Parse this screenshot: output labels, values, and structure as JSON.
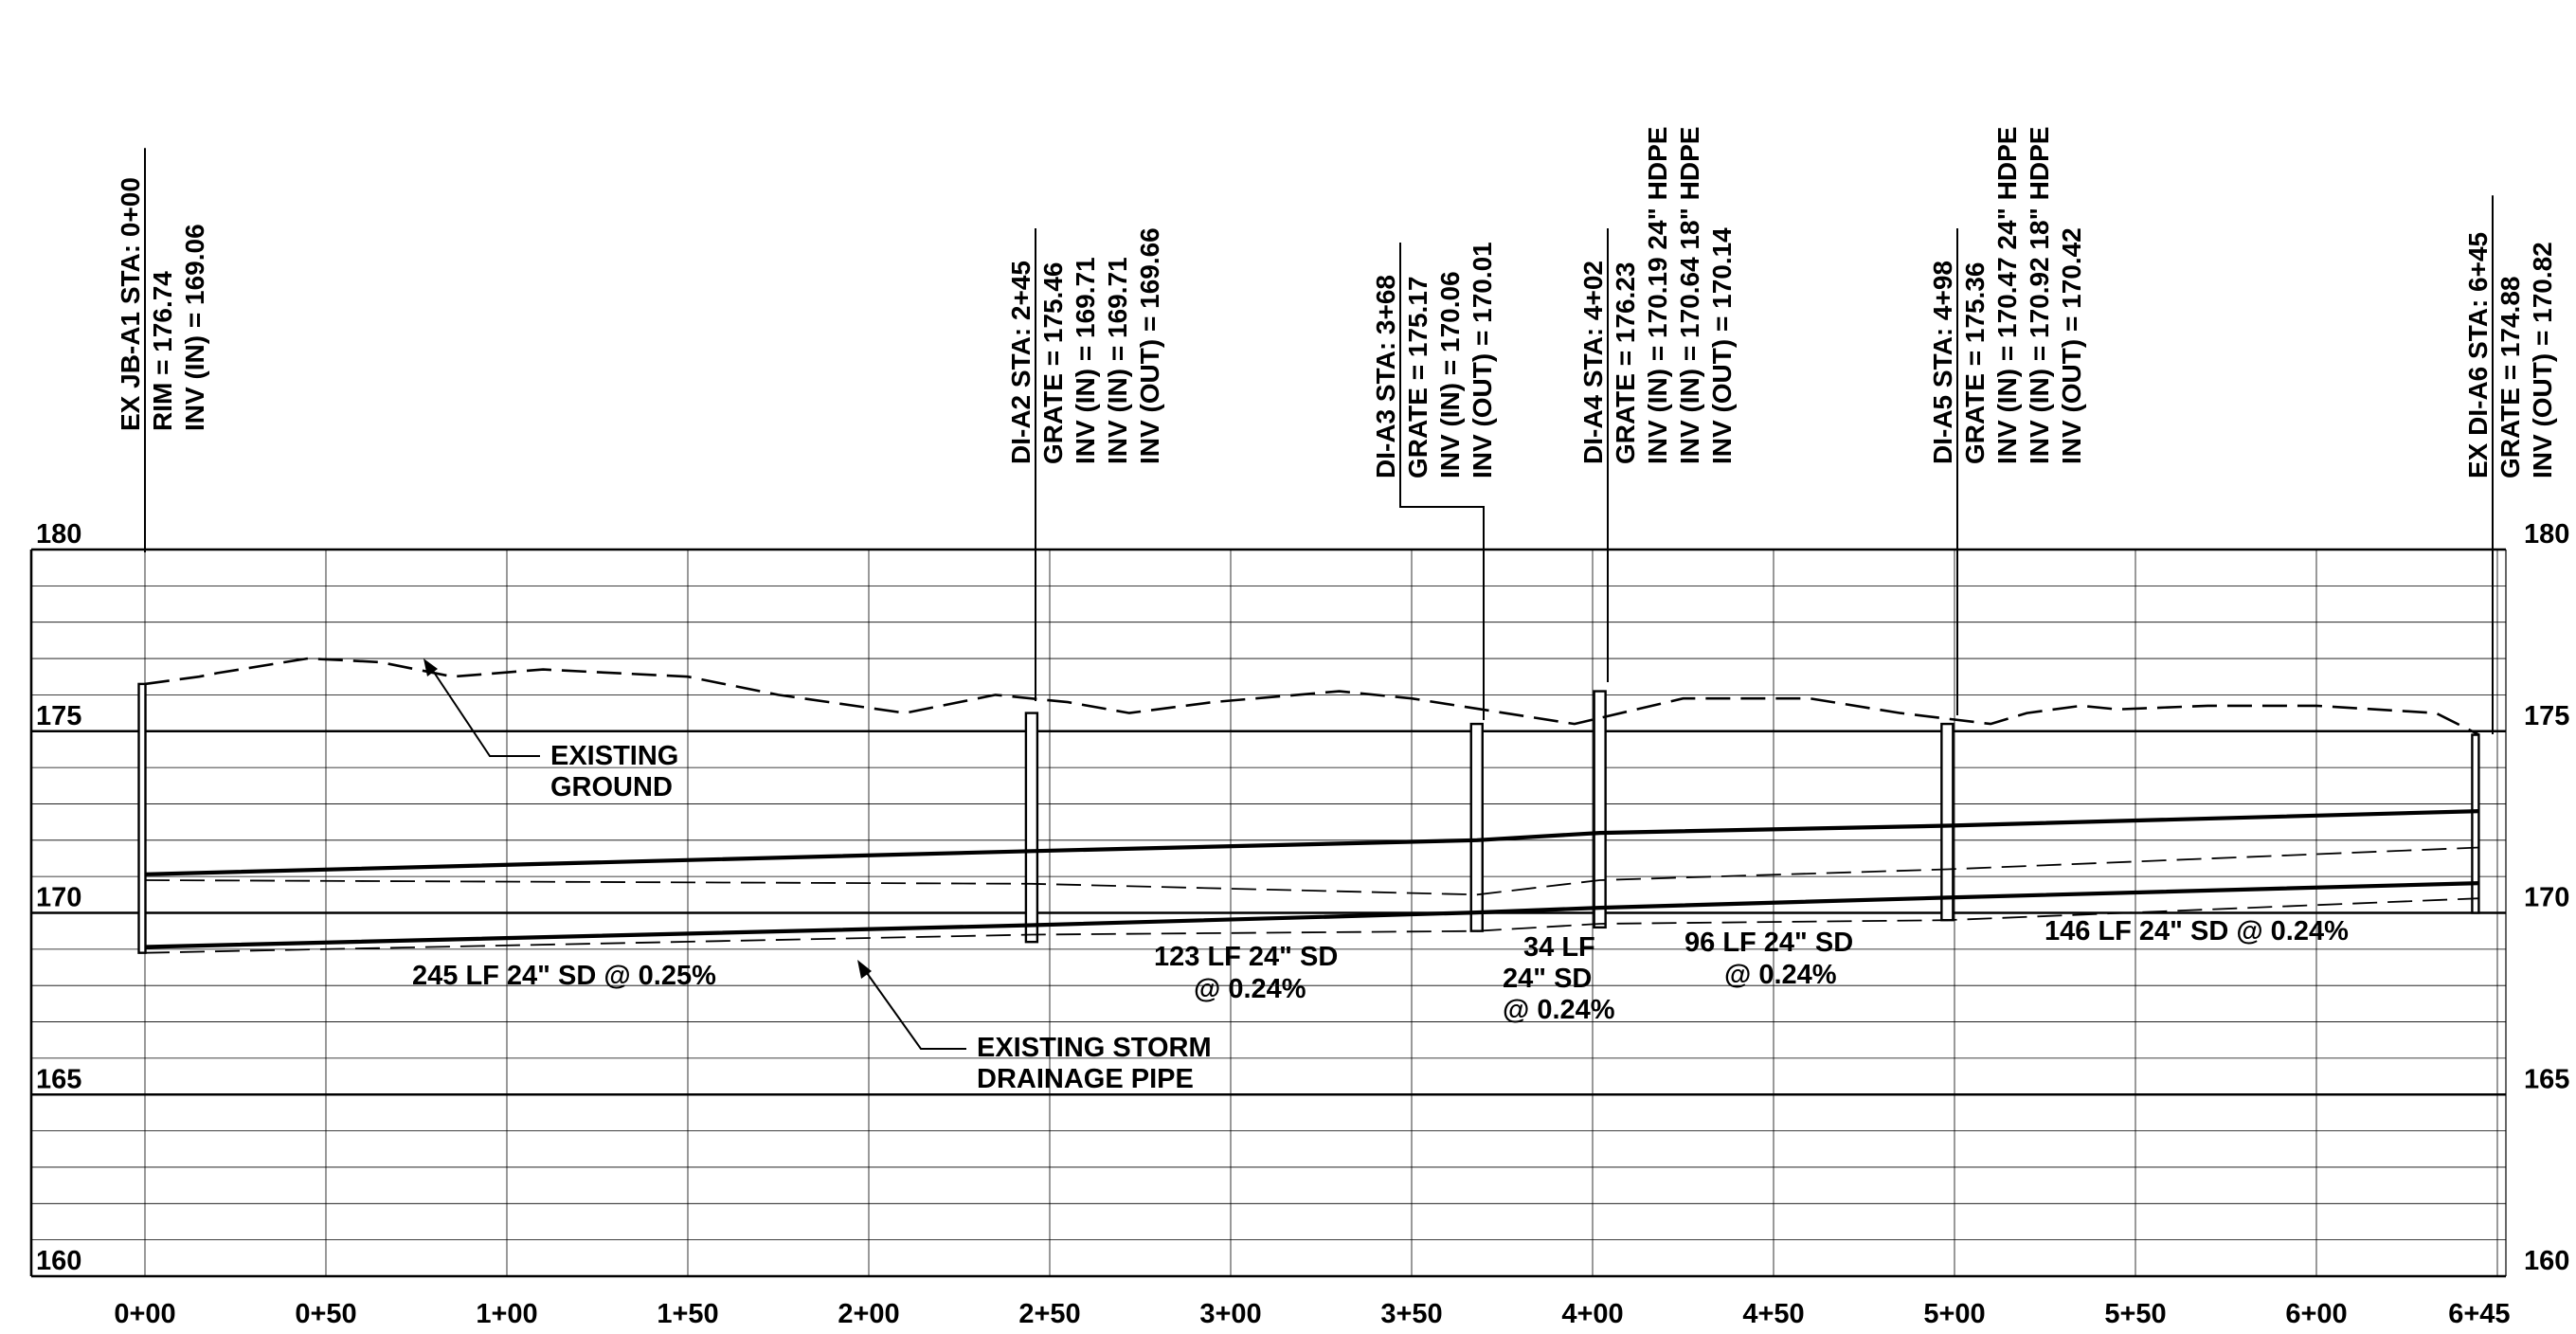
{
  "chart_data": {
    "type": "line",
    "x_ticks": [
      "0+00",
      "0+50",
      "1+00",
      "1+50",
      "2+00",
      "2+50",
      "3+00",
      "3+50",
      "4+00",
      "4+50",
      "5+00",
      "5+50",
      "6+00",
      "6+45"
    ],
    "y_ticks": [
      "180",
      "175",
      "170",
      "165",
      "160"
    ],
    "xlim": [
      0,
      645
    ],
    "ylim": [
      160,
      180
    ],
    "grid": true,
    "series": [
      {
        "role": "existing ground (dashed)",
        "x": [
          0,
          15,
          20,
          45,
          65,
          85,
          110,
          150,
          175,
          210,
          235,
          255,
          272,
          295,
          330,
          350,
          395,
          425,
          440,
          460,
          485,
          510,
          520,
          535,
          545,
          570,
          595,
          600,
          633,
          645
        ],
        "y": [
          176.3,
          176.5,
          176.6,
          177.0,
          176.9,
          176.5,
          176.7,
          176.5,
          176.0,
          175.5,
          176.0,
          175.8,
          175.5,
          175.8,
          176.1,
          175.9,
          175.2,
          175.9,
          175.9,
          175.9,
          175.5,
          175.2,
          175.5,
          175.7,
          175.6,
          175.7,
          175.7,
          175.7,
          175.5,
          174.9
        ]
      },
      {
        "role": "proposed storm drain crown (solid)",
        "x": [
          0,
          245,
          368,
          402,
          498,
          645
        ],
        "y": [
          171.06,
          171.7,
          172.0,
          172.2,
          172.4,
          172.8
        ]
      },
      {
        "role": "existing storm drainage pipe crown (dashed)",
        "x": [
          0,
          245,
          368,
          402,
          498,
          645
        ],
        "y": [
          170.9,
          170.8,
          170.5,
          170.9,
          171.2,
          171.8
        ]
      },
      {
        "role": "storm drain invert (solid)",
        "x": [
          0,
          245,
          368,
          402,
          498,
          645
        ],
        "y": [
          169.06,
          169.66,
          170.01,
          170.14,
          170.42,
          170.82
        ]
      },
      {
        "role": "existing storm drainage pipe invert (dashed)",
        "x": [
          0,
          245,
          368,
          402,
          498,
          645
        ],
        "y": [
          168.9,
          169.4,
          169.5,
          169.7,
          169.8,
          170.4
        ]
      }
    ],
    "structures": [
      {
        "station": 0,
        "top": 176.3,
        "bottom": 168.9,
        "callout": [
          "EX JB-A1 STA: 0+00",
          "RIM = 176.74",
          "INV (IN) = 169.06"
        ]
      },
      {
        "station": 245,
        "top": 175.5,
        "bottom": 169.2,
        "callout": [
          "DI-A2 STA: 2+45",
          "GRATE = 175.46",
          "INV (IN) = 169.71",
          "INV (IN) = 169.71",
          "INV (OUT) = 169.66"
        ]
      },
      {
        "station": 368,
        "top": 175.2,
        "bottom": 169.5,
        "callout": [
          "DI-A3 STA: 3+68",
          "GRATE = 175.17",
          "INV (IN) = 170.06",
          "INV (OUT) = 170.01"
        ]
      },
      {
        "station": 402,
        "top": 176.1,
        "bottom": 169.6,
        "callout": [
          "DI-A4 STA: 4+02",
          "GRATE = 176.23",
          "INV (IN) = 170.19 24\" HDPE",
          "INV (IN) = 170.64 18\" HDPE",
          "INV (OUT) = 170.14"
        ]
      },
      {
        "station": 498,
        "top": 175.2,
        "bottom": 169.8,
        "callout": [
          "DI-A5 STA: 4+98",
          "GRATE = 175.36",
          "INV (IN) = 170.47 24\" HDPE",
          "INV (IN) = 170.92 18\" HDPE",
          "INV (OUT) = 170.42"
        ]
      },
      {
        "station": 645,
        "top": 174.9,
        "bottom": 170.0,
        "callout": [
          "EX DI-A6 STA: 6+45",
          "GRATE = 174.88",
          "INV (OUT) = 170.82"
        ]
      }
    ],
    "pipe_labels": [
      {
        "lines": [
          "245 LF 24\" SD @ 0.25%"
        ]
      },
      {
        "lines": [
          "123 LF 24\" SD",
          "@ 0.24%"
        ]
      },
      {
        "lines": [
          "34 LF",
          "24\" SD",
          "@ 0.24%"
        ]
      },
      {
        "lines": [
          "96 LF 24\" SD",
          "@ 0.24%"
        ]
      },
      {
        "lines": [
          "146 LF 24\" SD @ 0.24%"
        ]
      }
    ],
    "annotations": [
      {
        "lines": [
          "EXISTING",
          "GROUND"
        ]
      },
      {
        "lines": [
          "EXISTING STORM",
          "DRAINAGE PIPE"
        ]
      }
    ]
  }
}
